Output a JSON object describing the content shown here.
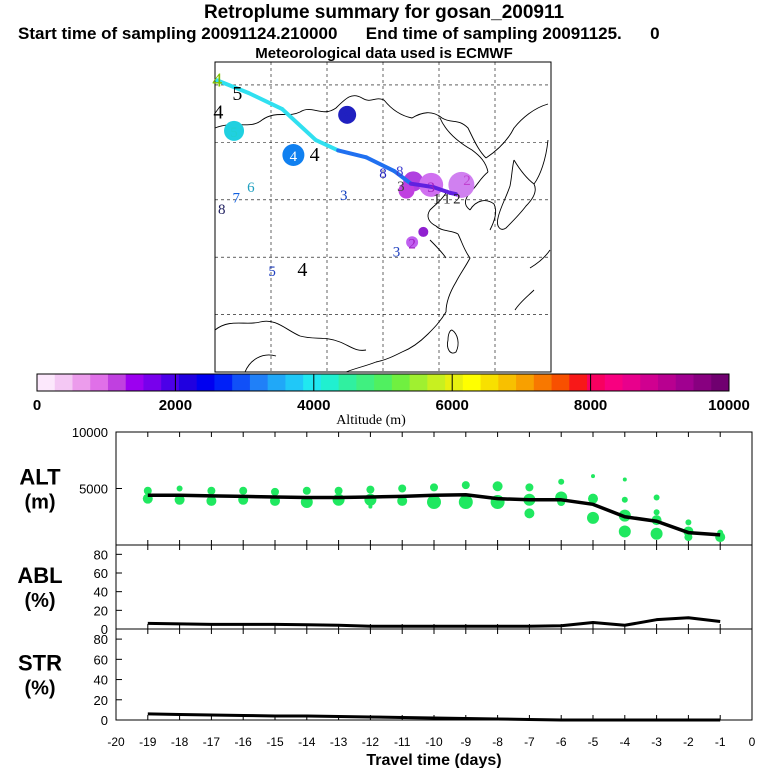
{
  "title": "Retroplume summary for gosan_200911",
  "subtitle": "Start time of sampling 20091124.210000      End time of sampling 20091125.      0",
  "met_line": "Meteorological data used is ECMWF",
  "colors": {
    "colorbar": [
      "#fce8fc",
      "#f4c8f4",
      "#ec9cec",
      "#e070e8",
      "#c040e0",
      "#9c00f0",
      "#7800ec",
      "#4c00e8",
      "#2000e0",
      "#0000f0",
      "#0020f8",
      "#1050f8",
      "#2080f8",
      "#20a8f8",
      "#20c8f8",
      "#20e8f0",
      "#20f0d0",
      "#30f0a0",
      "#40f080",
      "#50f060",
      "#70f040",
      "#a0f030",
      "#c8f020",
      "#e8f010",
      "#ffff00",
      "#f8e000",
      "#f8c000",
      "#f8a000",
      "#f87800",
      "#f85000",
      "#f81818",
      "#f80060",
      "#f80080",
      "#e8008c",
      "#d00090",
      "#b80090",
      "#a00090",
      "#880080",
      "#700070"
    ],
    "track": "#2030f0",
    "alt_dots": "#20e860",
    "line": "#000000"
  },
  "colorbar": {
    "tick_labels": [
      "0",
      "2000",
      "4000",
      "6000",
      "8000",
      "10000"
    ],
    "tick_values": [
      0,
      2000,
      4000,
      6000,
      8000,
      10000
    ],
    "label": "Altitude (m)"
  },
  "map_labels": [
    {
      "text": "4",
      "lon": 105.2,
      "lat": 45.4,
      "color": "#80c000"
    },
    {
      "text": "5",
      "lon": 107.0,
      "lat": 44.2,
      "color": "#000000"
    },
    {
      "text": "4",
      "lon": 105.3,
      "lat": 42.6,
      "color": "#000000"
    },
    {
      "text": "5",
      "lon": 106.7,
      "lat": 41.0,
      "color": "#20d0d0"
    },
    {
      "text": "6",
      "lon": 116.8,
      "lat": 42.4,
      "color": "#2020c0"
    },
    {
      "text": "4",
      "lon": 113.9,
      "lat": 38.9,
      "color": "#000000"
    },
    {
      "text": "4",
      "lon": 112.0,
      "lat": 38.9,
      "color": "#ffffff"
    },
    {
      "text": "8",
      "lon": 120.0,
      "lat": 37.4,
      "color": "#2020c0"
    },
    {
      "text": "8",
      "lon": 121.5,
      "lat": 37.6,
      "color": "#4040d0"
    },
    {
      "text": "6",
      "lon": 108.2,
      "lat": 36.2,
      "color": "#20a0c0"
    },
    {
      "text": "7",
      "lon": 106.9,
      "lat": 35.3,
      "color": "#1060e0"
    },
    {
      "text": "8",
      "lon": 105.6,
      "lat": 34.3,
      "color": "#202060"
    },
    {
      "text": "3",
      "lon": 116.5,
      "lat": 35.5,
      "color": "#1040c0"
    },
    {
      "text": "3",
      "lon": 121.6,
      "lat": 36.3,
      "color": "#404040"
    },
    {
      "text": "3",
      "lon": 124.3,
      "lat": 36.2,
      "color": "#a020c0"
    },
    {
      "text": "2",
      "lon": 127.5,
      "lat": 36.8,
      "color": "#c040d0"
    },
    {
      "text": "1",
      "lon": 124.8,
      "lat": 35.2,
      "color": "#202020"
    },
    {
      "text": "1",
      "lon": 125.7,
      "lat": 35.2,
      "color": "#202020"
    },
    {
      "text": "2",
      "lon": 126.6,
      "lat": 35.2,
      "color": "#202020"
    },
    {
      "text": "2",
      "lon": 122.6,
      "lat": 31.3,
      "color": "#a020c0"
    },
    {
      "text": "3",
      "lon": 121.2,
      "lat": 30.6,
      "color": "#2040c0"
    },
    {
      "text": "5",
      "lon": 110.1,
      "lat": 28.9,
      "color": "#2040c0"
    },
    {
      "text": "4",
      "lon": 112.8,
      "lat": 28.9,
      "color": "#000000"
    }
  ],
  "map_axis_marker": "0",
  "chart_data": [
    {
      "type": "map",
      "title": "Retroplume summary for gosan_200911",
      "track": [
        [
          105.2,
          45.4
        ],
        [
          108.0,
          44.3
        ],
        [
          111.0,
          42.9
        ],
        [
          114.0,
          40.2
        ],
        [
          116.0,
          39.3
        ],
        [
          118.5,
          38.7
        ],
        [
          121.0,
          37.5
        ],
        [
          122.5,
          36.4
        ],
        [
          124.5,
          36.1
        ],
        [
          126.0,
          35.6
        ],
        [
          126.5,
          35.5
        ]
      ],
      "clusters": [
        {
          "lon": 116.8,
          "lat": 42.4,
          "size": 9,
          "color": "#2020c0"
        },
        {
          "lon": 106.7,
          "lat": 41.0,
          "size": 10,
          "color": "#20d0e0"
        },
        {
          "lon": 112.0,
          "lat": 38.9,
          "size": 11,
          "color": "#1080f0"
        },
        {
          "lon": 122.7,
          "lat": 36.6,
          "size": 10,
          "color": "#b040e0"
        },
        {
          "lon": 124.3,
          "lat": 36.3,
          "size": 12,
          "color": "#d070f0"
        },
        {
          "lon": 127.0,
          "lat": 36.3,
          "size": 13,
          "color": "#d080f0"
        },
        {
          "lon": 122.1,
          "lat": 35.8,
          "size": 8,
          "color": "#c040e0"
        },
        {
          "lon": 122.6,
          "lat": 31.3,
          "size": 6,
          "color": "#c060f0"
        },
        {
          "lon": 123.6,
          "lat": 32.2,
          "size": 5,
          "color": "#9020d0"
        }
      ]
    },
    {
      "type": "scatter+line",
      "ylabel_top": "ALT",
      "ylabel_bottom": "(m)",
      "ylim": [
        0,
        10000
      ],
      "yticks": [
        5000,
        10000
      ],
      "x": [
        -19,
        -18,
        -17,
        -16,
        -15,
        -14,
        -13,
        -12,
        -11,
        -10,
        -9,
        -8,
        -7,
        -6,
        -5,
        -4,
        -3,
        -2,
        -1
      ],
      "mean": [
        4400,
        4400,
        4350,
        4300,
        4250,
        4200,
        4200,
        4250,
        4300,
        4400,
        4450,
        4100,
        4000,
        4000,
        3600,
        2500,
        2100,
        1100,
        900
      ],
      "scatter": [
        {
          "x": -19,
          "y": [
            4800,
            4100
          ],
          "s": [
            4,
            5
          ]
        },
        {
          "x": -18,
          "y": [
            5000,
            4000
          ],
          "s": [
            3,
            5
          ]
        },
        {
          "x": -17,
          "y": [
            4800,
            3900
          ],
          "s": [
            4,
            5
          ]
        },
        {
          "x": -16,
          "y": [
            4800,
            4000
          ],
          "s": [
            4,
            5
          ]
        },
        {
          "x": -15,
          "y": [
            4700,
            3900
          ],
          "s": [
            4,
            5
          ]
        },
        {
          "x": -14,
          "y": [
            4800,
            3800
          ],
          "s": [
            4,
            6
          ]
        },
        {
          "x": -13,
          "y": [
            4800,
            4000
          ],
          "s": [
            4,
            6
          ]
        },
        {
          "x": -12,
          "y": [
            4900,
            4000,
            3400
          ],
          "s": [
            4,
            6,
            2
          ]
        },
        {
          "x": -11,
          "y": [
            5000,
            3900
          ],
          "s": [
            4,
            5
          ]
        },
        {
          "x": -10,
          "y": [
            5100,
            3800
          ],
          "s": [
            4,
            7
          ]
        },
        {
          "x": -9,
          "y": [
            5300,
            3800
          ],
          "s": [
            4,
            7
          ]
        },
        {
          "x": -8,
          "y": [
            5200,
            3800
          ],
          "s": [
            5,
            7
          ]
        },
        {
          "x": -7,
          "y": [
            5100,
            4000,
            2800
          ],
          "s": [
            4,
            6,
            5
          ]
        },
        {
          "x": -6,
          "y": [
            5600,
            4200,
            3800
          ],
          "s": [
            3,
            6,
            4
          ]
        },
        {
          "x": -5,
          "y": [
            6100,
            4100,
            2400
          ],
          "s": [
            2,
            5,
            6
          ]
        },
        {
          "x": -4,
          "y": [
            5800,
            4000,
            2600,
            1200
          ],
          "s": [
            2,
            3,
            6,
            6
          ]
        },
        {
          "x": -3,
          "y": [
            4200,
            2900,
            2200,
            1000
          ],
          "s": [
            3,
            3,
            5,
            6
          ]
        },
        {
          "x": -2,
          "y": [
            2000,
            1200,
            700
          ],
          "s": [
            3,
            5,
            4
          ]
        },
        {
          "x": -1,
          "y": [
            1100,
            700
          ],
          "s": [
            3,
            5
          ]
        }
      ]
    },
    {
      "type": "line",
      "ylabel_top": "ABL",
      "ylabel_bottom": "(%)",
      "ylim": [
        0,
        90
      ],
      "yticks": [
        0,
        20,
        40,
        60,
        80
      ],
      "x": [
        -19,
        -18,
        -17,
        -16,
        -15,
        -14,
        -13,
        -12,
        -11,
        -10,
        -9,
        -8,
        -7,
        -6,
        -5,
        -4,
        -3,
        -2,
        -1
      ],
      "values": [
        6,
        5.5,
        5,
        5,
        5,
        4.5,
        4,
        3,
        3,
        3,
        3,
        3,
        3,
        3.5,
        7,
        4,
        10,
        12,
        8
      ]
    },
    {
      "type": "line",
      "ylabel_top": "STR",
      "ylabel_bottom": "(%)",
      "ylim": [
        0,
        90
      ],
      "yticks": [
        0,
        20,
        40,
        60,
        80
      ],
      "x": [
        -19,
        -18,
        -17,
        -16,
        -15,
        -14,
        -13,
        -12,
        -11,
        -10,
        -9,
        -8,
        -7,
        -6,
        -5,
        -4,
        -3,
        -2,
        -1
      ],
      "values": [
        6,
        5.5,
        5,
        4.5,
        4,
        4,
        3.5,
        3,
        2.5,
        2,
        1.5,
        1,
        0.5,
        0,
        0,
        0,
        0,
        0,
        0
      ],
      "xlabel": "Travel time (days)",
      "xticks": [
        "-20",
        "-19",
        "-18",
        "-17",
        "-16",
        "-15",
        "-14",
        "-13",
        "-12",
        "-11",
        "-10",
        "-9",
        "-8",
        "-7",
        "-6",
        "-5",
        "-4",
        "-3",
        "-2",
        "-1",
        "0"
      ],
      "xlim": [
        -20,
        0
      ]
    }
  ]
}
